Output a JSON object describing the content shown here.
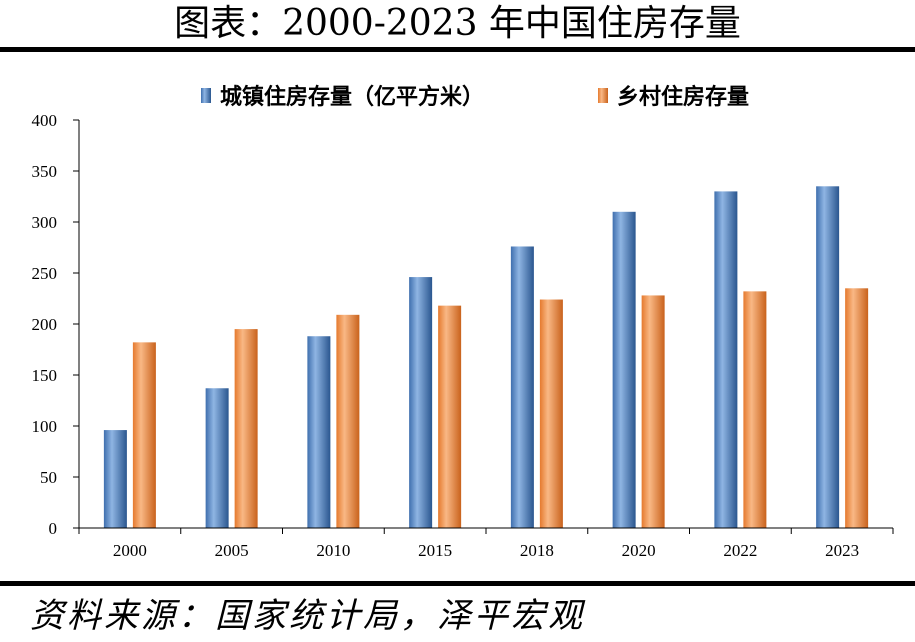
{
  "source": "资料来源：国家统计局，泽平宏观",
  "chart_data": {
    "type": "bar",
    "title": "图表：2000-2023 年中国住房存量",
    "xlabel": "",
    "ylabel": "",
    "ylim": [
      0,
      400
    ],
    "yticks": [
      0,
      50,
      100,
      150,
      200,
      250,
      300,
      350,
      400
    ],
    "grid": false,
    "legend": "top",
    "categories": [
      "2000",
      "2005",
      "2010",
      "2015",
      "2018",
      "2020",
      "2022",
      "2023"
    ],
    "series": [
      {
        "name": "城镇住房存量（亿平方米）",
        "color": "#4f81bd",
        "gradient": [
          "#3f6fae",
          "#8fb5e3",
          "#2a568f"
        ],
        "values": [
          96,
          137,
          188,
          246,
          276,
          310,
          330,
          335
        ]
      },
      {
        "name": "乡村住房存量",
        "color": "#f08a3e",
        "gradient": [
          "#e57a2e",
          "#f9b885",
          "#c9621c"
        ],
        "values": [
          182,
          195,
          209,
          218,
          224,
          228,
          232,
          235
        ]
      }
    ]
  }
}
